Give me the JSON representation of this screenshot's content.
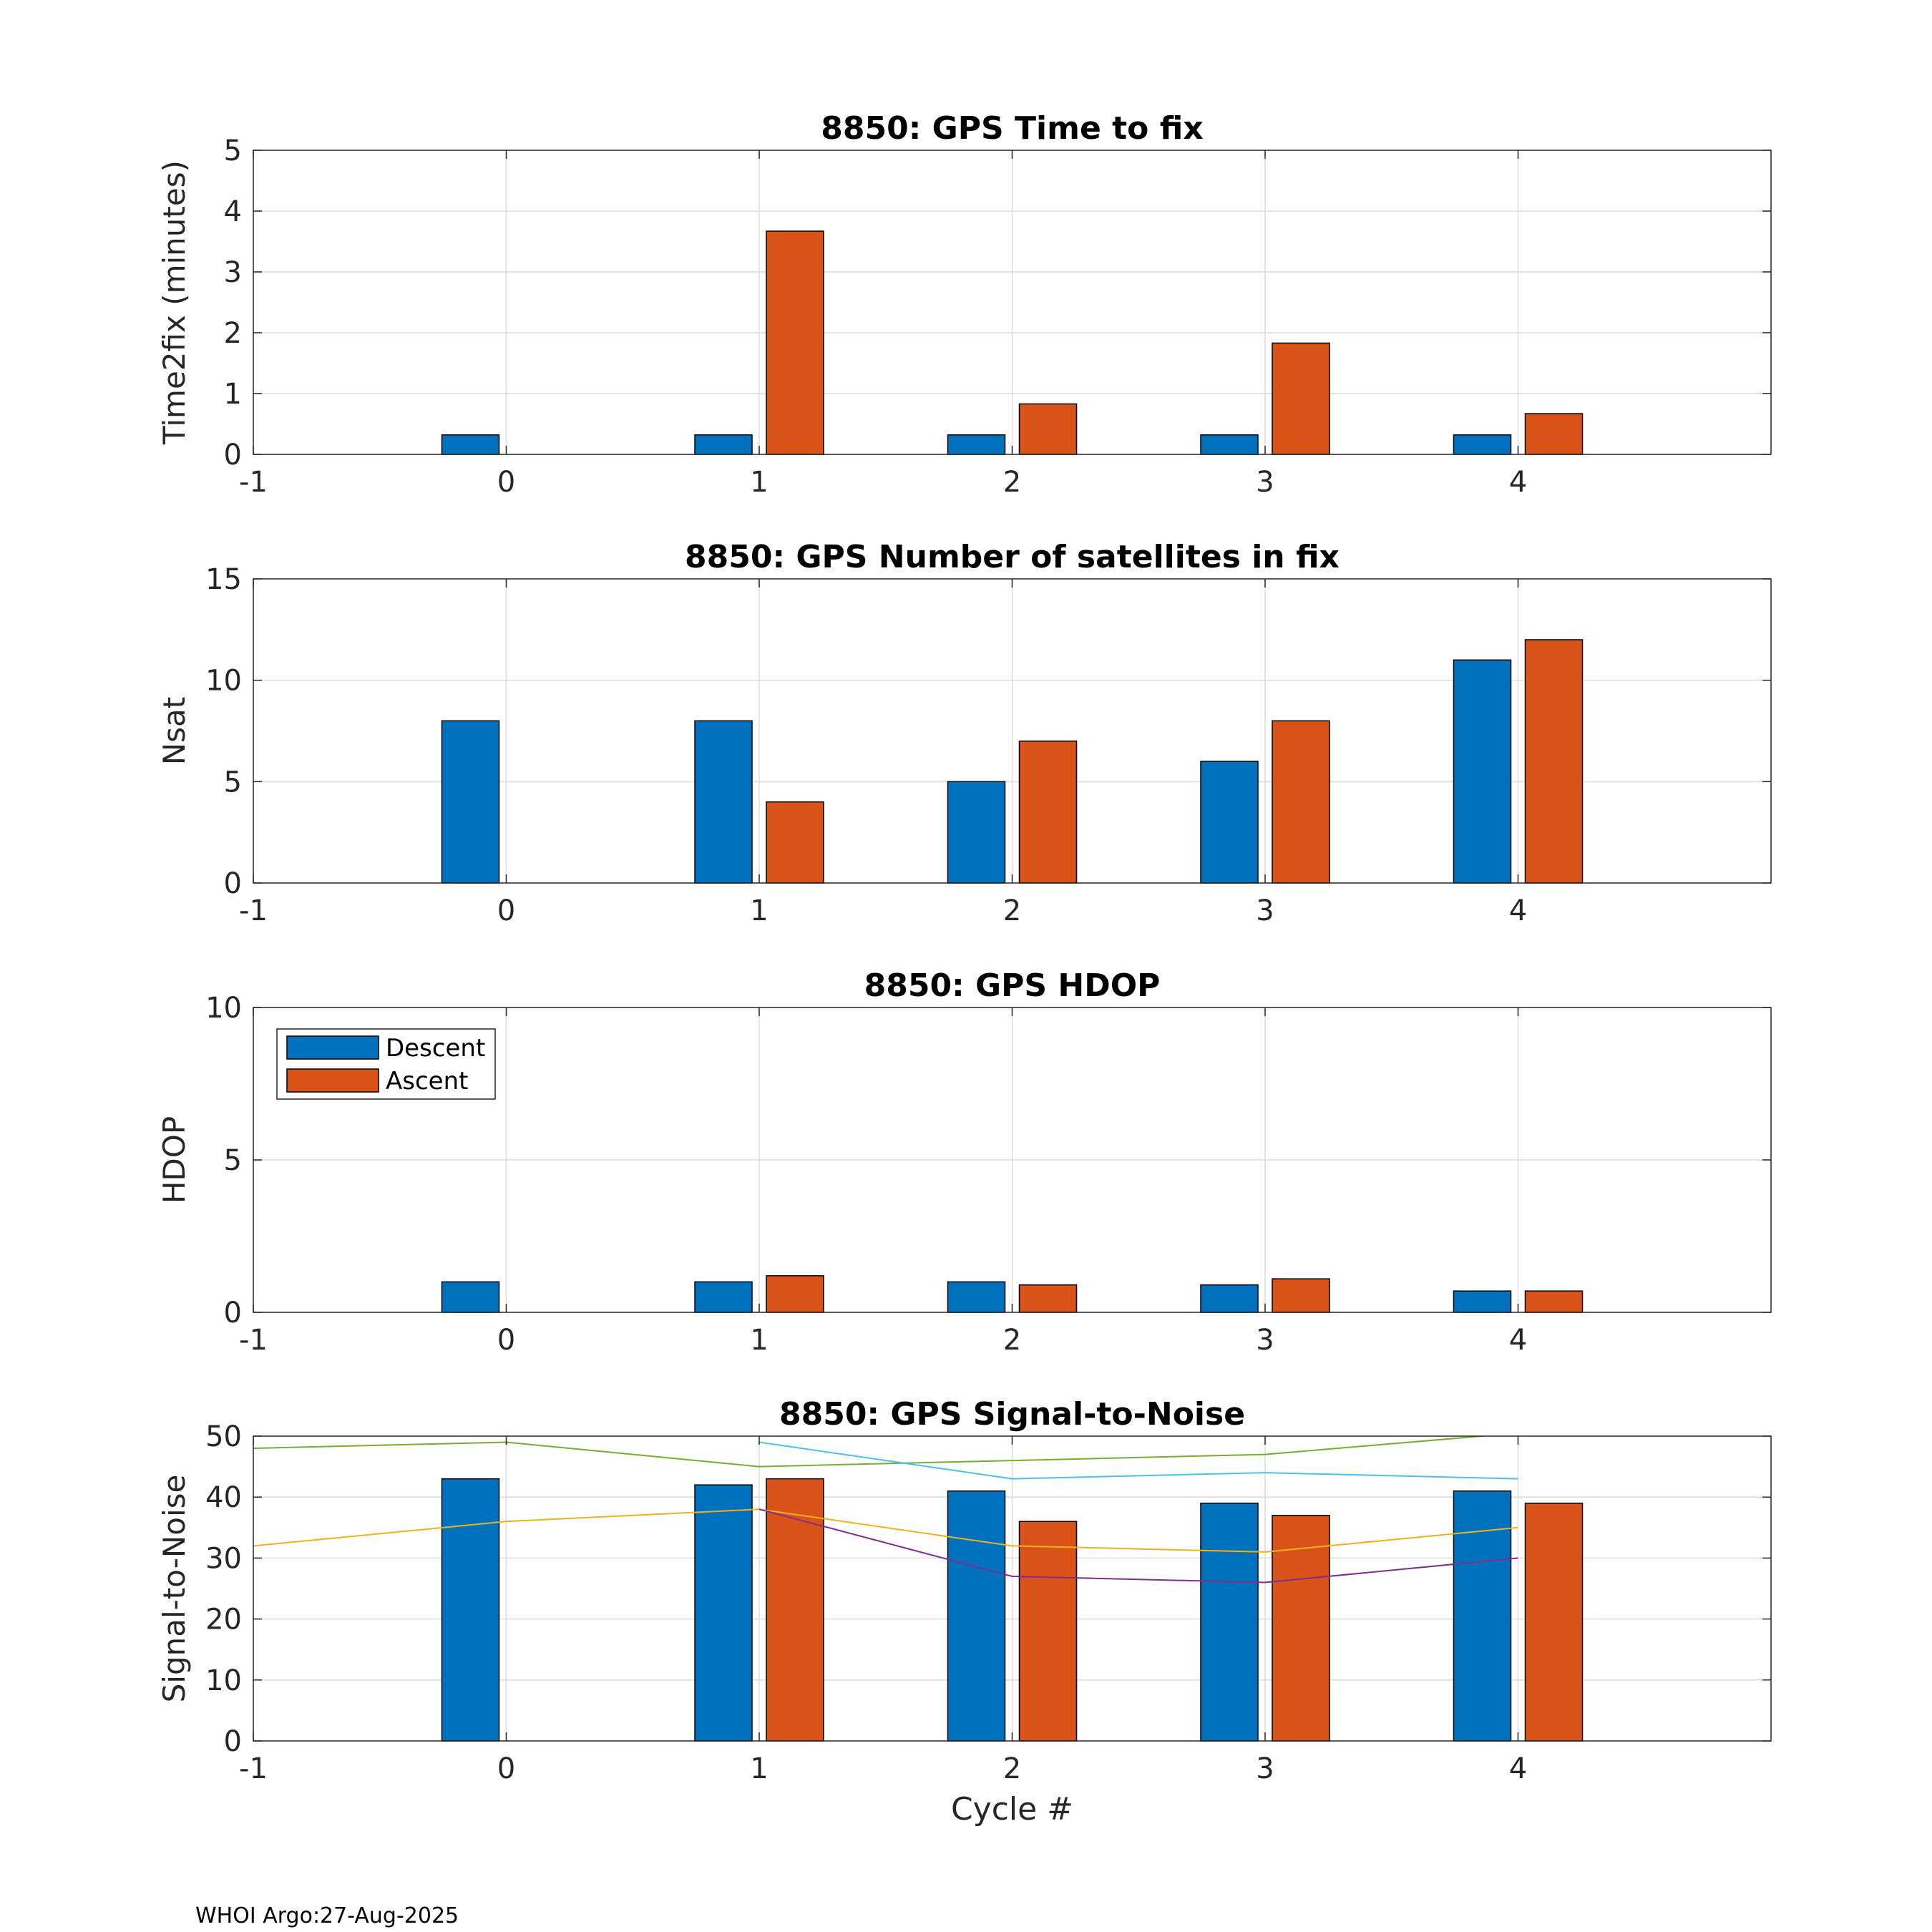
{
  "colors": {
    "descent": "#0072BD",
    "ascent": "#D95319",
    "snr_green": "#77AC30",
    "snr_cyan": "#4DBEEE",
    "snr_yellow": "#EDB120",
    "snr_purple": "#7E2F8E",
    "grid": "#dcdcdc",
    "axis": "#262626"
  },
  "footer": {
    "text": "WHOI Argo:27-Aug-2025"
  },
  "legend": {
    "descent": "Descent",
    "ascent": "Ascent"
  },
  "chart_data": [
    {
      "id": "time2fix",
      "type": "bar",
      "title": "8850: GPS Time to fix",
      "xlabel": "",
      "ylabel": "Time2fix (minutes)",
      "xlim": [
        -1,
        5
      ],
      "ylim": [
        0,
        5
      ],
      "xticks": [
        -1,
        0,
        1,
        2,
        3,
        4
      ],
      "yticks": [
        0,
        1,
        2,
        3,
        4,
        5
      ],
      "grid": true,
      "categories": [
        0,
        1,
        2,
        3,
        4
      ],
      "series": [
        {
          "name": "Descent",
          "values": [
            0.32,
            0.32,
            0.32,
            0.32,
            0.32
          ]
        },
        {
          "name": "Ascent",
          "values": [
            null,
            3.67,
            0.83,
            1.83,
            0.67
          ]
        }
      ]
    },
    {
      "id": "nsat",
      "type": "bar",
      "title": "8850: GPS Number of satellites in fix",
      "xlabel": "",
      "ylabel": "Nsat",
      "xlim": [
        -1,
        5
      ],
      "ylim": [
        0,
        15
      ],
      "xticks": [
        -1,
        0,
        1,
        2,
        3,
        4
      ],
      "yticks": [
        0,
        5,
        10,
        15
      ],
      "grid": true,
      "categories": [
        0,
        1,
        2,
        3,
        4
      ],
      "series": [
        {
          "name": "Descent",
          "values": [
            8,
            8,
            5,
            6,
            11
          ]
        },
        {
          "name": "Ascent",
          "values": [
            null,
            4,
            7,
            8,
            12
          ]
        }
      ]
    },
    {
      "id": "hdop",
      "type": "bar",
      "title": "8850: GPS HDOP",
      "xlabel": "",
      "ylabel": "HDOP",
      "xlim": [
        -1,
        5
      ],
      "ylim": [
        0,
        10
      ],
      "xticks": [
        -1,
        0,
        1,
        2,
        3,
        4
      ],
      "yticks": [
        0,
        5,
        10
      ],
      "grid": true,
      "legend_position": "top-left",
      "categories": [
        0,
        1,
        2,
        3,
        4
      ],
      "series": [
        {
          "name": "Descent",
          "values": [
            1.0,
            1.0,
            1.0,
            0.9,
            0.7
          ]
        },
        {
          "name": "Ascent",
          "values": [
            null,
            1.2,
            0.9,
            1.1,
            0.7
          ]
        }
      ]
    },
    {
      "id": "snr",
      "type": "bar",
      "title": "8850: GPS Signal-to-Noise",
      "xlabel": "Cycle #",
      "ylabel": "Signal-to-Noise",
      "xlim": [
        -1,
        5
      ],
      "ylim": [
        0,
        50
      ],
      "xticks": [
        -1,
        0,
        1,
        2,
        3,
        4
      ],
      "yticks": [
        0,
        10,
        20,
        30,
        40,
        50
      ],
      "grid": true,
      "categories": [
        0,
        1,
        2,
        3,
        4
      ],
      "series": [
        {
          "name": "Descent",
          "values": [
            43,
            42,
            41,
            39,
            41
          ]
        },
        {
          "name": "Ascent",
          "values": [
            null,
            43,
            36,
            37,
            39
          ]
        }
      ],
      "lines": [
        {
          "name": "green",
          "x": [
            -1,
            0,
            1,
            2,
            3,
            4
          ],
          "y": [
            48,
            49,
            45,
            46,
            47,
            50.5
          ]
        },
        {
          "name": "cyan",
          "x": [
            1,
            2,
            3,
            4
          ],
          "y": [
            49,
            43,
            44,
            43
          ]
        },
        {
          "name": "yellow",
          "x": [
            -1,
            0,
            1,
            2,
            3,
            4
          ],
          "y": [
            32,
            36,
            38,
            32,
            31,
            35
          ]
        },
        {
          "name": "purple",
          "x": [
            1,
            2,
            3,
            4
          ],
          "y": [
            38,
            27,
            26,
            30
          ]
        }
      ]
    }
  ]
}
